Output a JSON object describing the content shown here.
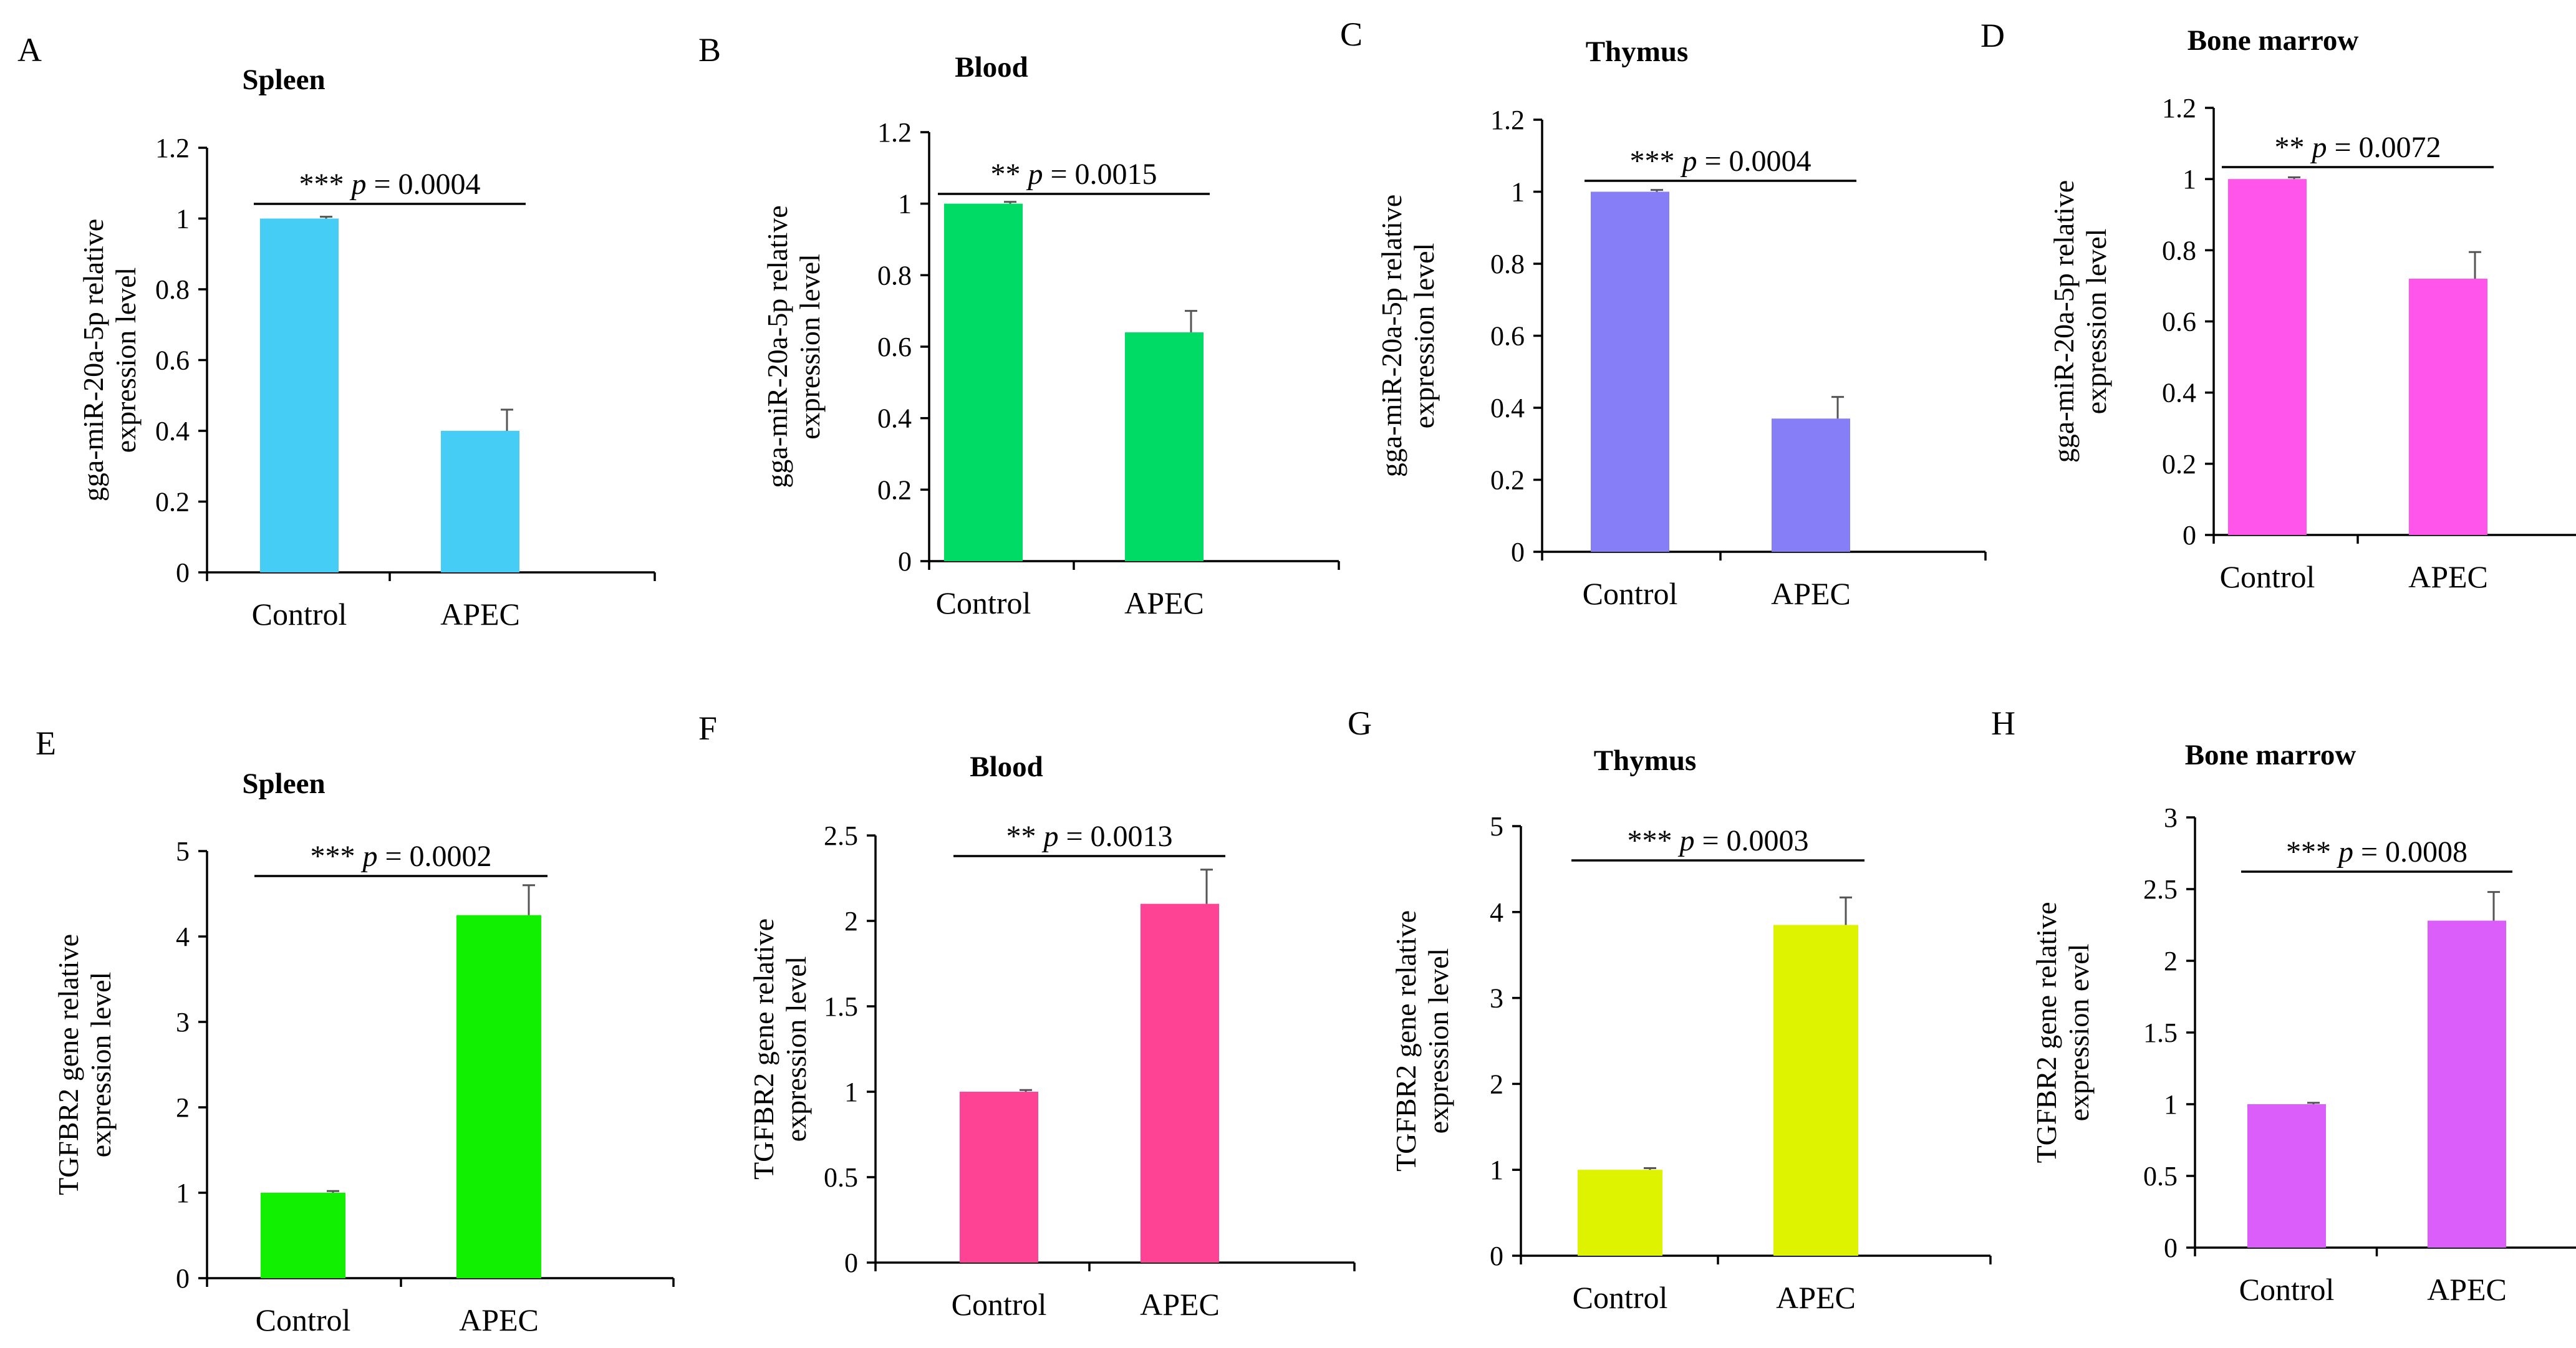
{
  "chart_data": [
    {
      "panel": "A",
      "type": "bar",
      "title": "Spleen",
      "ylabel": [
        "gga-miR-20a-5p relative",
        "expression level"
      ],
      "categories": [
        "Control",
        "APEC"
      ],
      "values": [
        1.0,
        0.4
      ],
      "errors": [
        0.005,
        0.06
      ],
      "ylim": [
        0,
        1.2
      ],
      "yticks": [
        0,
        0.2,
        0.4,
        0.6,
        0.8,
        1,
        1.2
      ],
      "yticklabels": [
        "0",
        "0.2",
        "0.4",
        "0.6",
        "0.8",
        "1",
        "1.2"
      ],
      "color": "#45CDF5",
      "sig_stars": "***",
      "p_label": "p",
      "p_value": "= 0.0004"
    },
    {
      "panel": "B",
      "type": "bar",
      "title": "Blood",
      "ylabel": [
        "gga-miR-20a-5p relative",
        "expression level"
      ],
      "categories": [
        "Control",
        "APEC"
      ],
      "values": [
        1.0,
        0.64
      ],
      "errors": [
        0.005,
        0.06
      ],
      "ylim": [
        0,
        1.2
      ],
      "yticks": [
        0,
        0.2,
        0.4,
        0.6,
        0.8,
        1,
        1.2
      ],
      "yticklabels": [
        "0",
        "0.2",
        "0.4",
        "0.6",
        "0.8",
        "1",
        "1.2"
      ],
      "color": "#00DB66",
      "sig_stars": "**",
      "p_label": "p",
      "p_value": "= 0.0015"
    },
    {
      "panel": "C",
      "type": "bar",
      "title": "Thymus",
      "ylabel": [
        "gga-miR-20a-5p relative",
        "expression level"
      ],
      "categories": [
        "Control",
        "APEC"
      ],
      "values": [
        1.0,
        0.37
      ],
      "errors": [
        0.005,
        0.06
      ],
      "ylim": [
        0,
        1.2
      ],
      "yticks": [
        0,
        0.2,
        0.4,
        0.6,
        0.8,
        1,
        1.2
      ],
      "yticklabels": [
        "0",
        "0.2",
        "0.4",
        "0.6",
        "0.8",
        "1",
        "1.2"
      ],
      "color": "#857EF6",
      "sig_stars": "***",
      "p_label": "p",
      "p_value": "= 0.0004"
    },
    {
      "panel": "D",
      "type": "bar",
      "title": "Bone marrow",
      "ylabel": [
        "gga-miR-20a-5p relative",
        "expression level"
      ],
      "categories": [
        "Control",
        "APEC"
      ],
      "values": [
        1.0,
        0.72
      ],
      "errors": [
        0.005,
        0.075
      ],
      "ylim": [
        0,
        1.2
      ],
      "yticks": [
        0,
        0.2,
        0.4,
        0.6,
        0.8,
        1,
        1.2
      ],
      "yticklabels": [
        "0",
        "0.2",
        "0.4",
        "0.6",
        "0.8",
        "1",
        "1.2"
      ],
      "color": "#FF55EB",
      "sig_stars": "**",
      "p_label": "p",
      "p_value": "= 0.0072"
    },
    {
      "panel": "E",
      "type": "bar",
      "title": "Spleen",
      "ylabel": [
        "TGFBR2 gene relative",
        "expression level"
      ],
      "categories": [
        "Control",
        "APEC"
      ],
      "values": [
        1.0,
        4.25
      ],
      "errors": [
        0.02,
        0.35
      ],
      "ylim": [
        0,
        5
      ],
      "yticks": [
        0,
        1,
        2,
        3,
        4,
        5
      ],
      "yticklabels": [
        "0",
        "1",
        "2",
        "3",
        "4",
        "5"
      ],
      "color": "#11F000",
      "sig_stars": "***",
      "p_label": "p",
      "p_value": "= 0.0002"
    },
    {
      "panel": "F",
      "type": "bar",
      "title": "Blood",
      "ylabel": [
        "TGFBR2 gene relative",
        "expression level"
      ],
      "categories": [
        "Control",
        "APEC"
      ],
      "values": [
        1.0,
        2.1
      ],
      "errors": [
        0.01,
        0.2
      ],
      "ylim": [
        0,
        2.5
      ],
      "yticks": [
        0,
        0.5,
        1,
        1.5,
        2,
        2.5
      ],
      "yticklabels": [
        "0",
        "0.5",
        "1",
        "1.5",
        "2",
        "2.5"
      ],
      "color": "#FF4394",
      "sig_stars": "**",
      "p_label": "p",
      "p_value": "= 0.0013"
    },
    {
      "panel": "G",
      "type": "bar",
      "title": "Thymus",
      "ylabel": [
        "TGFBR2 gene relative",
        "expression level"
      ],
      "categories": [
        "Control",
        "APEC"
      ],
      "values": [
        1.0,
        3.85
      ],
      "errors": [
        0.02,
        0.32
      ],
      "ylim": [
        0,
        5
      ],
      "yticks": [
        0,
        1,
        2,
        3,
        4,
        5
      ],
      "yticklabels": [
        "0",
        "1",
        "2",
        "3",
        "4",
        "5"
      ],
      "color": "#DDF300",
      "sig_stars": "***",
      "p_label": "p",
      "p_value": "= 0.0003"
    },
    {
      "panel": "H",
      "type": "bar",
      "title": "Bone marrow",
      "ylabel": [
        "TGFBR2 gene relative",
        "expression evel"
      ],
      "categories": [
        "Control",
        "APEC"
      ],
      "values": [
        1.0,
        2.28
      ],
      "errors": [
        0.01,
        0.2
      ],
      "ylim": [
        0,
        3
      ],
      "yticks": [
        0,
        0.5,
        1,
        1.5,
        2,
        2.5,
        3
      ],
      "yticklabels": [
        "0",
        "0.5",
        "1",
        "1.5",
        "2",
        "2.5",
        "3"
      ],
      "color": "#DC5EFA",
      "sig_stars": "***",
      "p_label": "p",
      "p_value": "= 0.0008"
    }
  ]
}
